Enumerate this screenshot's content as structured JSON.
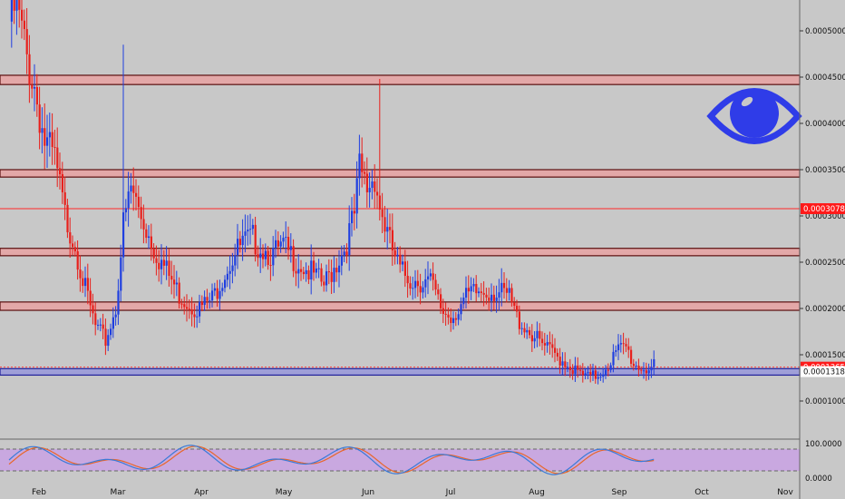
{
  "chart_data": {
    "type": "candlestick",
    "title": "",
    "xlabel": "",
    "ylabel": "",
    "ylim": [
      5e-05,
      0.00055
    ],
    "y_ticks": [
      "0.00010000",
      "0.00015000",
      "0.00020000",
      "0.00025000",
      "0.00030000",
      "0.00035000",
      "0.00040000",
      "0.00045000",
      "0.00050000"
    ],
    "x_ticks": [
      "Feb",
      "Mar",
      "Apr",
      "May",
      "Jun",
      "Jul",
      "Aug",
      "Sep",
      "Oct",
      "Nov"
    ],
    "last_price_label": "0.00013659",
    "red_price_label": "0.00030784",
    "support_price_label": "0.00013180",
    "colors": {
      "background": "#c8c8c8",
      "up_candle": "#1f3fe0",
      "down_candle": "#e8201c",
      "zone_fill": "#e3a8a8",
      "zone_border": "#5a0f0f",
      "support_fill": "#9f9fd8",
      "support_border": "#20209a",
      "stoch_fill": "#c9a8e0",
      "stoch_k": "#3a7ad8",
      "stoch_d": "#e8662a",
      "eye": "#2f3ce8"
    },
    "zones": [
      {
        "low": 0.000442,
        "high": 0.000452
      },
      {
        "low": 0.000342,
        "high": 0.00035
      },
      {
        "low": 0.000257,
        "high": 0.000265
      },
      {
        "low": 0.000198,
        "high": 0.000207
      }
    ],
    "support_zone": {
      "low": 0.000128,
      "high": 0.000135
    },
    "red_line": 0.00030784,
    "last_price": 0.00013659,
    "anchors": [
      [
        0,
        0.00051
      ],
      [
        3,
        0.000525
      ],
      [
        7,
        0.00047
      ],
      [
        10,
        0.00044
      ],
      [
        14,
        0.00038
      ],
      [
        18,
        0.00036
      ],
      [
        22,
        0.0003
      ],
      [
        26,
        0.00027
      ],
      [
        30,
        0.00022
      ],
      [
        34,
        0.00018
      ],
      [
        38,
        0.000165
      ],
      [
        42,
        0.0002
      ],
      [
        45,
        0.00029
      ],
      [
        48,
        0.00033
      ],
      [
        52,
        0.0003
      ],
      [
        55,
        0.00028
      ],
      [
        58,
        0.00026
      ],
      [
        61,
        0.000245
      ],
      [
        64,
        0.00023
      ],
      [
        67,
        0.000215
      ],
      [
        71,
        0.000205
      ],
      [
        75,
        0.0002
      ],
      [
        80,
        0.00021
      ],
      [
        84,
        0.000235
      ],
      [
        88,
        0.000255
      ],
      [
        92,
        0.00027
      ],
      [
        96,
        0.000275
      ],
      [
        100,
        0.000265
      ],
      [
        104,
        0.000258
      ],
      [
        108,
        0.000265
      ],
      [
        112,
        0.000255
      ],
      [
        116,
        0.000245
      ],
      [
        120,
        0.000235
      ],
      [
        124,
        0.000225
      ],
      [
        128,
        0.000245
      ],
      [
        132,
        0.000265
      ],
      [
        136,
        0.0003
      ],
      [
        138,
        0.00035
      ],
      [
        141,
        0.00033
      ],
      [
        144,
        0.000345
      ],
      [
        146,
        0.00031
      ],
      [
        150,
        0.00027
      ],
      [
        154,
        0.00024
      ],
      [
        158,
        0.000232
      ],
      [
        162,
        0.00023
      ],
      [
        166,
        0.000228
      ],
      [
        170,
        0.0002
      ],
      [
        174,
        0.00019
      ],
      [
        178,
        0.000205
      ],
      [
        182,
        0.000215
      ],
      [
        186,
        0.000218
      ],
      [
        190,
        0.00022
      ],
      [
        194,
        0.000215
      ],
      [
        197,
        0.000212
      ],
      [
        200,
        0.00019
      ],
      [
        205,
        0.000175
      ],
      [
        210,
        0.00016
      ],
      [
        215,
        0.00015
      ],
      [
        220,
        0.00014
      ],
      [
        224,
        0.00013
      ],
      [
        228,
        0.000125
      ],
      [
        232,
        0.000128
      ],
      [
        236,
        0.00014
      ],
      [
        240,
        0.000155
      ],
      [
        243,
        0.000158
      ],
      [
        246,
        0.00014
      ],
      [
        250,
        0.000135
      ],
      [
        254,
        0.000137
      ]
    ],
    "spikes": [
      {
        "bar": 45,
        "high": 0.000485
      },
      {
        "bar": 146,
        "high": 0.000448
      }
    ],
    "stoch_levels": [
      "100.0000",
      "0.0000"
    ]
  }
}
